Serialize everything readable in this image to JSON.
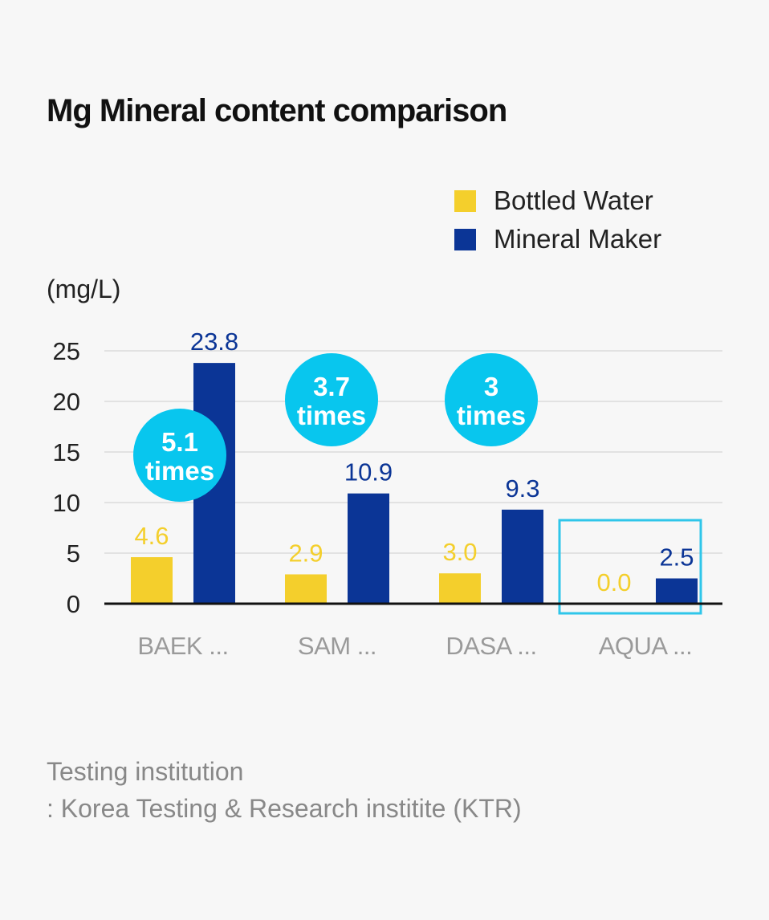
{
  "colors": {
    "bottled": "#f4cf2c",
    "mineral": "#0b3596",
    "bubble": "#08c6ee",
    "highlight": "#2fc6ea",
    "axis": "#111111",
    "grid": "#e2e2e2",
    "category": "#9a9a9a"
  },
  "chart_data": {
    "type": "bar",
    "title": "Mg Mineral content comparison",
    "ylabel": "(mg/L)",
    "ylim": [
      0,
      25
    ],
    "yticks": [
      0,
      5,
      10,
      15,
      20,
      25
    ],
    "grid": true,
    "legend_position": "top-right",
    "categories": [
      "BAEK ...",
      "SAM ...",
      "DASA ...",
      "AQUA ..."
    ],
    "series": [
      {
        "name": "Bottled Water",
        "color": "#f4cf2c",
        "values": [
          4.6,
          2.9,
          3.0,
          0.0
        ],
        "labels": [
          "4.6",
          "2.9",
          "3.0",
          "0.0"
        ]
      },
      {
        "name": "Mineral Maker",
        "color": "#0b3596",
        "values": [
          23.8,
          10.9,
          9.3,
          2.5
        ],
        "labels": [
          "23.8",
          "10.9",
          "9.3",
          "2.5"
        ]
      }
    ],
    "annotations": [
      {
        "category": "BAEK ...",
        "line1": "5.1",
        "line2": "times"
      },
      {
        "category": "SAM ...",
        "line1": "3.7",
        "line2": "times"
      },
      {
        "category": "DASA ...",
        "line1": "3",
        "line2": "times"
      }
    ],
    "highlighted_category": "AQUA ..."
  },
  "source": {
    "line1": "Testing institution",
    "line2": ": Korea Testing & Research institite (KTR)"
  }
}
